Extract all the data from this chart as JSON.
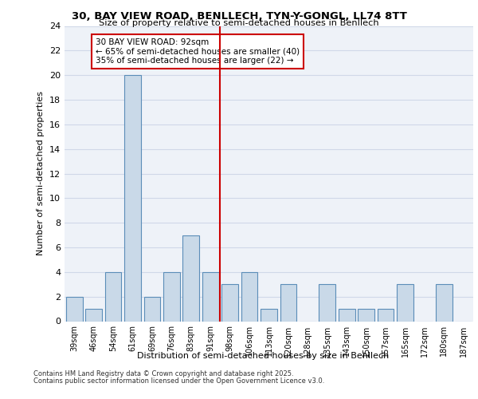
{
  "title_line1": "30, BAY VIEW ROAD, BENLLECH, TYN-Y-GONGL, LL74 8TT",
  "title_line2": "Size of property relative to semi-detached houses in Benllech",
  "xlabel": "Distribution of semi-detached houses by size in Benllech",
  "ylabel": "Number of semi-detached properties",
  "categories": [
    "39sqm",
    "46sqm",
    "54sqm",
    "61sqm",
    "69sqm",
    "76sqm",
    "83sqm",
    "91sqm",
    "98sqm",
    "106sqm",
    "113sqm",
    "120sqm",
    "128sqm",
    "135sqm",
    "143sqm",
    "150sqm",
    "157sqm",
    "165sqm",
    "172sqm",
    "180sqm",
    "187sqm"
  ],
  "values": [
    2,
    1,
    4,
    20,
    2,
    4,
    7,
    4,
    3,
    4,
    1,
    3,
    0,
    3,
    1,
    1,
    1,
    3,
    0,
    3,
    0
  ],
  "bar_color": "#c9d9e8",
  "bar_edge_color": "#5b8db8",
  "grid_color": "#d0d8e8",
  "background_color": "#eef2f8",
  "vline_color": "#cc0000",
  "vline_x": 7.5,
  "annotation_title": "30 BAY VIEW ROAD: 92sqm",
  "annotation_line1": "← 65% of semi-detached houses are smaller (40)",
  "annotation_line2": "35% of semi-detached houses are larger (22) →",
  "annotation_box_color": "#ffffff",
  "annotation_box_edge": "#cc0000",
  "ylim": [
    0,
    24
  ],
  "yticks": [
    0,
    2,
    4,
    6,
    8,
    10,
    12,
    14,
    16,
    18,
    20,
    22,
    24
  ],
  "footer_line1": "Contains HM Land Registry data © Crown copyright and database right 2025.",
  "footer_line2": "Contains public sector information licensed under the Open Government Licence v3.0."
}
